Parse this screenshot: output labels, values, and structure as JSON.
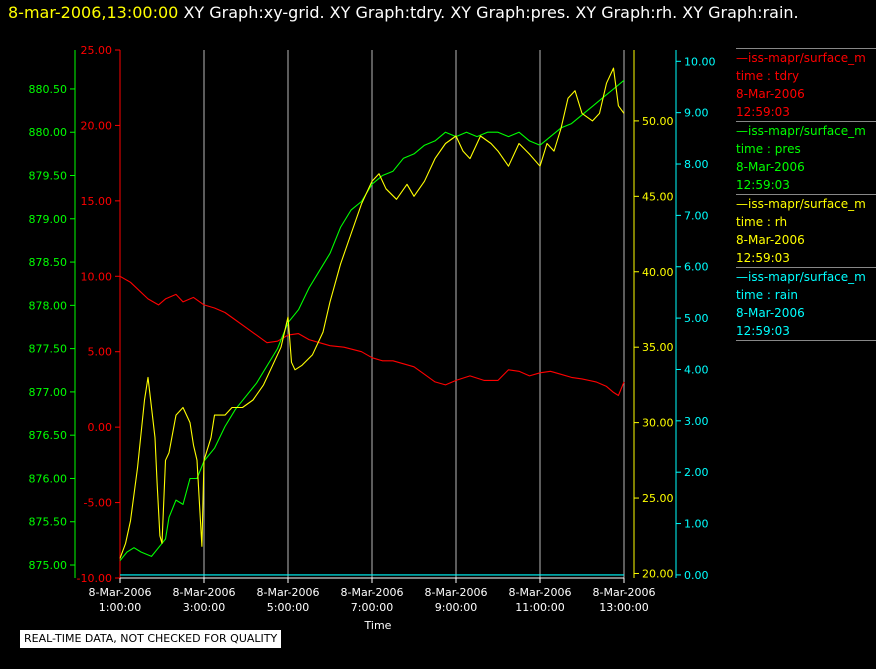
{
  "header": {
    "timestamp": "8-mar-2006,13:00:00",
    "graph_titles": [
      "XY Graph:xy-grid.",
      "XY Graph:tdry.",
      "XY Graph:pres.",
      "XY Graph:rh.",
      "XY Graph:rain."
    ]
  },
  "notice": "REAL-TIME DATA, NOT CHECKED FOR QUALITY",
  "legend": [
    {
      "source": "—iss-mapr/surface_m",
      "var": "time : tdry",
      "date": "8-Mar-2006",
      "time": "12:59:03",
      "color": "#ff0000"
    },
    {
      "source": "—iss-mapr/surface_m",
      "var": "time : pres",
      "date": "8-Mar-2006",
      "time": "12:59:03",
      "color": "#00ff00"
    },
    {
      "source": "—iss-mapr/surface_m",
      "var": "time : rh",
      "date": "8-Mar-2006",
      "time": "12:59:03",
      "color": "#ffff00"
    },
    {
      "source": "—iss-mapr/surface_m",
      "var": "time : rain",
      "date": "8-Mar-2006",
      "time": "12:59:03",
      "color": "#00ffff"
    }
  ],
  "chart_data": {
    "type": "line",
    "xlabel": "Time",
    "x_ticks": [
      {
        "date": "8-Mar-2006",
        "time": "1:00:00"
      },
      {
        "date": "8-Mar-2006",
        "time": "3:00:00"
      },
      {
        "date": "8-Mar-2006",
        "time": "5:00:00"
      },
      {
        "date": "8-Mar-2006",
        "time": "7:00:00"
      },
      {
        "date": "8-Mar-2006",
        "time": "9:00:00"
      },
      {
        "date": "8-Mar-2006",
        "time": "11:00:00"
      },
      {
        "date": "8-Mar-2006",
        "time": "13:00:00"
      }
    ],
    "xlim": [
      "01:00",
      "13:00"
    ],
    "grid": "vertical",
    "axes": {
      "tdry": {
        "color": "#ff0000",
        "ylim": [
          -10,
          25
        ],
        "ticks": [
          "25.00",
          "20.00",
          "15.00",
          "10.00",
          "5.00",
          "0.00",
          "-5.00",
          "-10.00"
        ]
      },
      "pres": {
        "color": "#00ff00",
        "ylim": [
          874.85,
          880.95
        ],
        "ticks": [
          "880.50",
          "880.00",
          "879.50",
          "879.00",
          "878.50",
          "878.00",
          "877.50",
          "877.00",
          "876.50",
          "876.00",
          "875.50",
          "875.00"
        ]
      },
      "rh": {
        "color": "#ffff00",
        "ylim": [
          19.7,
          54.7
        ],
        "ticks": [
          "50.00",
          "45.00",
          "40.00",
          "35.00",
          "30.00",
          "25.00",
          "20.00"
        ]
      },
      "rain": {
        "color": "#00ffff",
        "ylim": [
          -0.06,
          10.22
        ],
        "ticks": [
          "10.00",
          "9.00",
          "8.00",
          "7.00",
          "6.00",
          "5.00",
          "4.00",
          "3.00",
          "2.00",
          "1.00",
          "0.00"
        ]
      }
    },
    "series": [
      {
        "key": "tdry",
        "color": "#ff0000",
        "points": [
          [
            "01:00",
            10.0
          ],
          [
            "01:15",
            9.6
          ],
          [
            "01:40",
            8.5
          ],
          [
            "01:55",
            8.1
          ],
          [
            "02:05",
            8.5
          ],
          [
            "02:20",
            8.8
          ],
          [
            "02:30",
            8.3
          ],
          [
            "02:45",
            8.6
          ],
          [
            "03:00",
            8.1
          ],
          [
            "03:15",
            7.9
          ],
          [
            "03:30",
            7.6
          ],
          [
            "03:45",
            7.1
          ],
          [
            "04:00",
            6.6
          ],
          [
            "04:15",
            6.1
          ],
          [
            "04:30",
            5.6
          ],
          [
            "04:45",
            5.7
          ],
          [
            "05:00",
            6.1
          ],
          [
            "05:15",
            6.2
          ],
          [
            "05:30",
            5.8
          ],
          [
            "05:45",
            5.6
          ],
          [
            "06:00",
            5.4
          ],
          [
            "06:20",
            5.3
          ],
          [
            "06:45",
            5.0
          ],
          [
            "07:00",
            4.6
          ],
          [
            "07:15",
            4.4
          ],
          [
            "07:30",
            4.4
          ],
          [
            "07:45",
            4.2
          ],
          [
            "08:00",
            4.0
          ],
          [
            "08:15",
            3.5
          ],
          [
            "08:30",
            3.0
          ],
          [
            "08:45",
            2.8
          ],
          [
            "09:00",
            3.1
          ],
          [
            "09:20",
            3.4
          ],
          [
            "09:40",
            3.1
          ],
          [
            "10:00",
            3.1
          ],
          [
            "10:15",
            3.8
          ],
          [
            "10:30",
            3.7
          ],
          [
            "10:45",
            3.4
          ],
          [
            "11:00",
            3.6
          ],
          [
            "11:15",
            3.7
          ],
          [
            "11:30",
            3.5
          ],
          [
            "11:45",
            3.3
          ],
          [
            "12:00",
            3.2
          ],
          [
            "12:20",
            3.0
          ],
          [
            "12:35",
            2.7
          ],
          [
            "12:45",
            2.3
          ],
          [
            "12:52",
            2.1
          ],
          [
            "13:00",
            3.0
          ]
        ]
      },
      {
        "key": "pres",
        "color": "#00ff00",
        "points": [
          [
            "01:00",
            875.05
          ],
          [
            "01:10",
            875.15
          ],
          [
            "01:20",
            875.2
          ],
          [
            "01:30",
            875.15
          ],
          [
            "01:45",
            875.1
          ],
          [
            "01:55",
            875.2
          ],
          [
            "02:05",
            875.3
          ],
          [
            "02:10",
            875.55
          ],
          [
            "02:20",
            875.75
          ],
          [
            "02:30",
            875.7
          ],
          [
            "02:40",
            876.0
          ],
          [
            "02:50",
            876.0
          ],
          [
            "03:00",
            876.2
          ],
          [
            "03:15",
            876.35
          ],
          [
            "03:30",
            876.6
          ],
          [
            "03:45",
            876.8
          ],
          [
            "04:00",
            876.95
          ],
          [
            "04:15",
            877.1
          ],
          [
            "04:30",
            877.3
          ],
          [
            "04:45",
            877.5
          ],
          [
            "05:00",
            877.8
          ],
          [
            "05:15",
            877.95
          ],
          [
            "05:30",
            878.2
          ],
          [
            "05:45",
            878.4
          ],
          [
            "06:00",
            878.6
          ],
          [
            "06:15",
            878.9
          ],
          [
            "06:30",
            879.1
          ],
          [
            "06:45",
            879.2
          ],
          [
            "07:00",
            879.4
          ],
          [
            "07:15",
            879.5
          ],
          [
            "07:30",
            879.55
          ],
          [
            "07:45",
            879.7
          ],
          [
            "08:00",
            879.75
          ],
          [
            "08:15",
            879.85
          ],
          [
            "08:30",
            879.9
          ],
          [
            "08:45",
            880.0
          ],
          [
            "09:00",
            879.95
          ],
          [
            "09:15",
            880.0
          ],
          [
            "09:30",
            879.95
          ],
          [
            "09:45",
            880.0
          ],
          [
            "10:00",
            880.0
          ],
          [
            "10:15",
            879.95
          ],
          [
            "10:30",
            880.0
          ],
          [
            "10:45",
            879.9
          ],
          [
            "11:00",
            879.85
          ],
          [
            "11:15",
            879.95
          ],
          [
            "11:30",
            880.05
          ],
          [
            "11:45",
            880.1
          ],
          [
            "12:00",
            880.2
          ],
          [
            "12:15",
            880.3
          ],
          [
            "12:30",
            880.4
          ],
          [
            "12:45",
            880.5
          ],
          [
            "13:00",
            880.6
          ]
        ]
      },
      {
        "key": "rh",
        "color": "#ffff00",
        "points": [
          [
            "01:00",
            21.0
          ],
          [
            "01:08",
            22.0
          ],
          [
            "01:15",
            23.5
          ],
          [
            "01:25",
            27.0
          ],
          [
            "01:35",
            31.5
          ],
          [
            "01:40",
            33.0
          ],
          [
            "01:45",
            31.0
          ],
          [
            "01:50",
            29.0
          ],
          [
            "01:53",
            26.0
          ],
          [
            "01:57",
            22.5
          ],
          [
            "02:00",
            22.0
          ],
          [
            "02:05",
            27.5
          ],
          [
            "02:10",
            28.0
          ],
          [
            "02:20",
            30.5
          ],
          [
            "02:30",
            31.0
          ],
          [
            "02:40",
            30.0
          ],
          [
            "02:45",
            28.5
          ],
          [
            "02:50",
            27.5
          ],
          [
            "02:57",
            21.8
          ],
          [
            "03:00",
            27.5
          ],
          [
            "03:10",
            29.0
          ],
          [
            "03:15",
            30.5
          ],
          [
            "03:30",
            30.5
          ],
          [
            "03:40",
            31.0
          ],
          [
            "03:55",
            31.0
          ],
          [
            "04:10",
            31.5
          ],
          [
            "04:25",
            32.5
          ],
          [
            "04:40",
            34.0
          ],
          [
            "04:50",
            35.0
          ],
          [
            "05:00",
            37.0
          ],
          [
            "05:05",
            34.0
          ],
          [
            "05:10",
            33.5
          ],
          [
            "05:20",
            33.8
          ],
          [
            "05:35",
            34.5
          ],
          [
            "05:50",
            36.0
          ],
          [
            "06:00",
            38.0
          ],
          [
            "06:15",
            40.5
          ],
          [
            "06:30",
            42.5
          ],
          [
            "06:45",
            44.5
          ],
          [
            "07:00",
            46.0
          ],
          [
            "07:10",
            46.5
          ],
          [
            "07:20",
            45.5
          ],
          [
            "07:35",
            44.8
          ],
          [
            "07:50",
            45.8
          ],
          [
            "08:00",
            45.0
          ],
          [
            "08:15",
            46.0
          ],
          [
            "08:30",
            47.5
          ],
          [
            "08:45",
            48.5
          ],
          [
            "09:00",
            49.0
          ],
          [
            "09:10",
            48.0
          ],
          [
            "09:20",
            47.5
          ],
          [
            "09:35",
            49.0
          ],
          [
            "09:50",
            48.5
          ],
          [
            "10:00",
            48.0
          ],
          [
            "10:15",
            47.0
          ],
          [
            "10:30",
            48.5
          ],
          [
            "10:45",
            47.8
          ],
          [
            "11:00",
            47.0
          ],
          [
            "11:10",
            48.5
          ],
          [
            "11:20",
            48.0
          ],
          [
            "11:30",
            49.5
          ],
          [
            "11:40",
            51.5
          ],
          [
            "11:50",
            52.0
          ],
          [
            "12:00",
            50.5
          ],
          [
            "12:15",
            50.0
          ],
          [
            "12:25",
            50.5
          ],
          [
            "12:35",
            52.5
          ],
          [
            "12:45",
            53.5
          ],
          [
            "12:52",
            51.0
          ],
          [
            "13:00",
            50.5
          ]
        ]
      },
      {
        "key": "rain",
        "color": "#00ffff",
        "points": [
          [
            "01:00",
            0.0
          ],
          [
            "13:00",
            0.0
          ]
        ]
      }
    ]
  }
}
